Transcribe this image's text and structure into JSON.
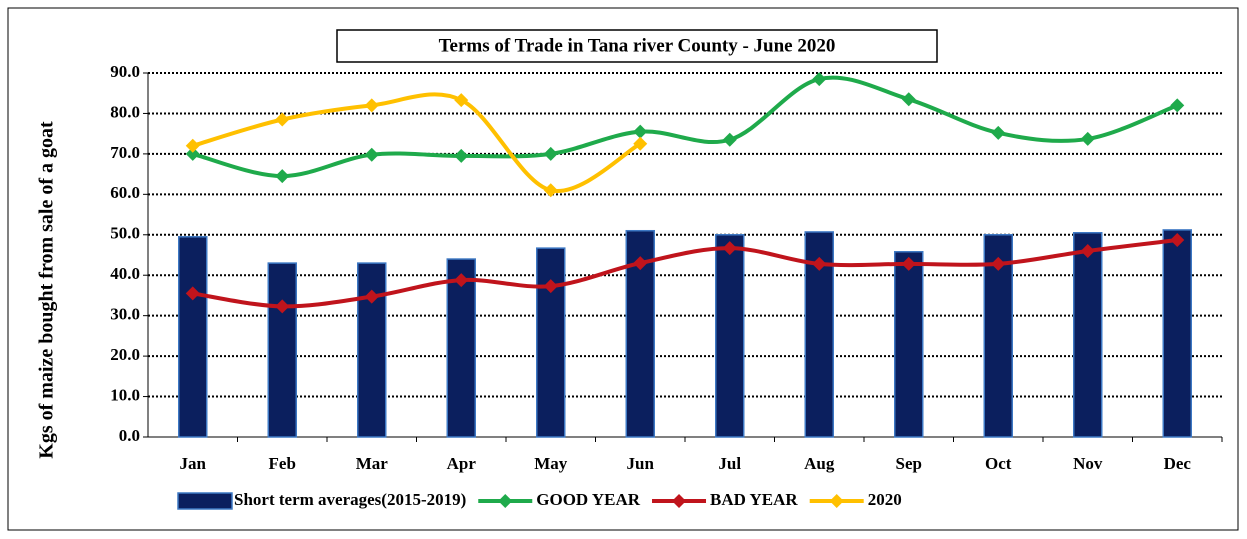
{
  "chart_data": {
    "type": "bar_line",
    "title": "Terms of Trade in Tana river   County - June 2020",
    "y_label": "Kgs of maize bought from sale of a goat",
    "categories": [
      "Jan",
      "Feb",
      "Mar",
      "Apr",
      "May",
      "Jun",
      "Jul",
      "Aug",
      "Sep",
      "Oct",
      "Nov",
      "Dec"
    ],
    "series": [
      {
        "name": "Short term averages(2015-2019)",
        "type": "bar",
        "color": "#0b1f5e",
        "values": [
          49.5,
          43,
          43,
          44,
          46.7,
          51,
          50,
          50.7,
          45.8,
          50,
          50.5,
          51.2
        ]
      },
      {
        "name": "GOOD YEAR",
        "type": "line",
        "color": "#1faa4b",
        "values": [
          70,
          64.5,
          69.8,
          69.5,
          70,
          75.5,
          73.5,
          88.5,
          83.5,
          75.2,
          73.7,
          82
        ]
      },
      {
        "name": "BAD YEAR",
        "type": "line",
        "color": "#c0141c",
        "values": [
          35.5,
          32.3,
          34.7,
          38.8,
          37.3,
          43,
          46.7,
          42.8,
          42.8,
          42.8,
          46,
          48.7
        ]
      },
      {
        "name": "2020",
        "type": "line",
        "color": "#ffc000",
        "values": [
          72,
          78.5,
          82,
          83.3,
          61,
          72.5,
          null,
          null,
          null,
          null,
          null,
          null
        ]
      }
    ],
    "ylim": [
      0,
      90
    ],
    "yticks": [
      {
        "value": 0,
        "label": "0.0"
      },
      {
        "value": 10,
        "label": "10.0"
      },
      {
        "value": 20,
        "label": "20.0"
      },
      {
        "value": 30,
        "label": "30.0"
      },
      {
        "value": 40,
        "label": "40.0"
      },
      {
        "value": 50,
        "label": "50.0"
      },
      {
        "value": 60,
        "label": "60.0"
      },
      {
        "value": 70,
        "label": "70.0"
      },
      {
        "value": 80,
        "label": "80.0"
      },
      {
        "value": 90,
        "label": "90.0"
      }
    ],
    "grid": true,
    "smooth": true,
    "legend": "bottom"
  }
}
